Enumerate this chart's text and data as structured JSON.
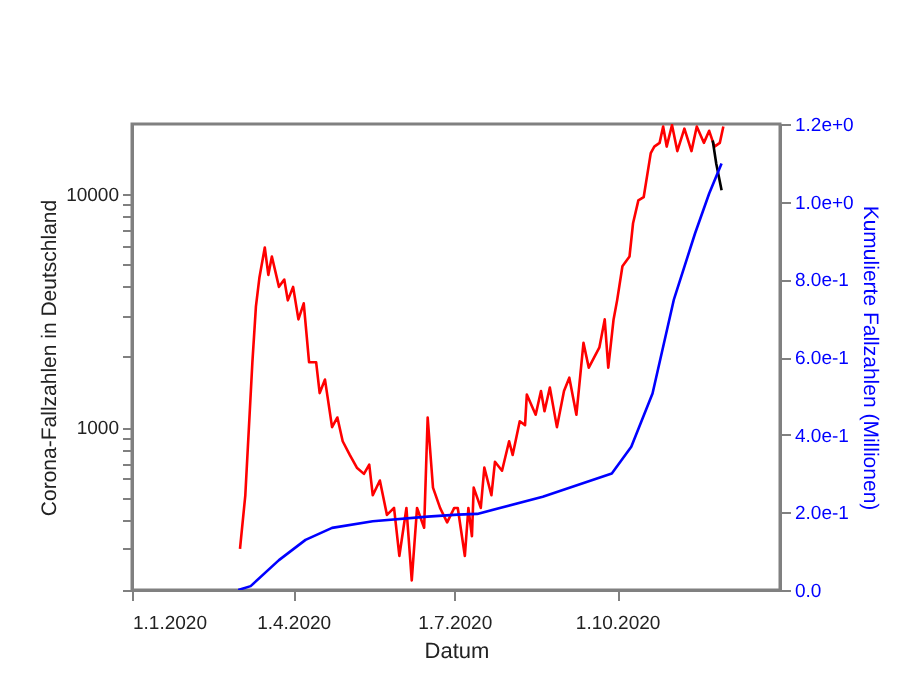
{
  "chart_data": {
    "type": "line",
    "xlabel": "Datum",
    "ylabel": "Corona-Fallzahlen in Deutschland",
    "y2label": "Kumulierte Fallzahlen (Millionen)",
    "log": "y",
    "grid": false,
    "xlim": [
      "2020-01-01",
      "2021-01-01"
    ],
    "xticks": [
      {
        "value": "2020-01-01",
        "label": "1.1.2020"
      },
      {
        "value": "2020-04-01",
        "label": "1.4.2020"
      },
      {
        "value": "2020-07-01",
        "label": "1.7.2020"
      },
      {
        "value": "2020-10-01",
        "label": "1.10.2020"
      }
    ],
    "ylim": [
      200,
      20000
    ],
    "yticks": [
      {
        "value": 200,
        "label": null
      },
      {
        "value": 300,
        "label": null
      },
      {
        "value": 400,
        "label": null
      },
      {
        "value": 500,
        "label": null
      },
      {
        "value": 600,
        "label": null
      },
      {
        "value": 700,
        "label": null
      },
      {
        "value": 800,
        "label": null
      },
      {
        "value": 900,
        "label": null
      },
      1000,
      {
        "value": 2000,
        "label": null
      },
      {
        "value": 3000,
        "label": null
      },
      {
        "value": 4000,
        "label": null
      },
      {
        "value": 5000,
        "label": null
      },
      {
        "value": 6000,
        "label": null
      },
      {
        "value": 7000,
        "label": null
      },
      {
        "value": 8000,
        "label": null
      },
      {
        "value": 9000,
        "label": null
      },
      10000
    ],
    "y2lim": [
      0,
      1.2
    ],
    "y2ticks": [
      {
        "value": 0,
        "label": "0.0"
      },
      {
        "value": 0.2,
        "label": "2.0e-1"
      },
      {
        "value": 0.4,
        "label": "4.0e-1"
      },
      {
        "value": 0.6,
        "label": "6.0e-1"
      },
      {
        "value": 0.8,
        "label": "8.0e-1"
      },
      {
        "value": 1.0,
        "label": "1.0e+0"
      },
      {
        "value": 1.2,
        "label": "1.2e+0"
      }
    ],
    "series": [
      {
        "color": "#ff0000",
        "x": [
          "2020-03-02",
          "2020-03-05",
          "2020-03-09",
          "2020-03-11",
          "2020-03-13",
          "2020-03-16",
          "2020-03-18",
          "2020-03-20",
          "2020-03-24",
          "2020-03-27",
          "2020-03-29",
          "2020-04-01",
          "2020-04-04",
          "2020-04-07",
          "2020-04-10",
          "2020-04-14",
          "2020-04-16",
          "2020-04-19",
          "2020-04-23",
          "2020-04-26",
          "2020-04-29",
          "2020-05-03",
          "2020-05-07",
          "2020-05-11",
          "2020-05-14",
          "2020-05-16",
          "2020-05-20",
          "2020-05-24",
          "2020-05-28",
          "2020-05-31",
          "2020-06-04",
          "2020-06-07",
          "2020-06-10",
          "2020-06-14",
          "2020-06-16",
          "2020-06-19",
          "2020-06-23",
          "2020-06-27",
          "2020-07-01",
          "2020-07-03",
          "2020-07-07",
          "2020-07-09",
          "2020-07-11",
          "2020-07-12",
          "2020-07-16",
          "2020-07-18",
          "2020-07-22",
          "2020-07-24",
          "2020-07-28",
          "2020-08-01",
          "2020-08-03",
          "2020-08-07",
          "2020-08-10",
          "2020-08-11",
          "2020-08-16",
          "2020-08-19",
          "2020-08-21",
          "2020-08-24",
          "2020-08-28",
          "2020-09-01",
          "2020-09-04",
          "2020-09-08",
          "2020-09-12",
          "2020-09-15",
          "2020-09-21",
          "2020-09-24",
          "2020-09-26",
          "2020-09-29",
          "2020-10-01",
          "2020-10-04",
          "2020-10-08",
          "2020-10-10",
          "2020-10-13",
          "2020-10-16",
          "2020-10-20",
          "2020-10-22",
          "2020-10-25",
          "2020-10-27",
          "2020-10-29",
          "2020-11-01",
          "2020-11-04",
          "2020-11-08",
          "2020-11-12",
          "2020-11-15",
          "2020-11-19",
          "2020-11-22",
          "2020-11-25",
          "2020-11-28",
          "2020-11-30"
        ],
        "values": [
          300,
          510,
          1900,
          3300,
          4400,
          5900,
          4500,
          5400,
          4000,
          4300,
          3500,
          4000,
          2900,
          3400,
          1900,
          1900,
          1400,
          1600,
          1000,
          1100,
          870,
          760,
          670,
          630,
          690,
          510,
          590,
          420,
          450,
          280,
          450,
          220,
          450,
          370,
          1100,
          550,
          450,
          390,
          450,
          450,
          280,
          450,
          340,
          550,
          450,
          670,
          510,
          710,
          650,
          870,
          760,
          1060,
          1020,
          1380,
          1130,
          1430,
          1170,
          1480,
          1000,
          1430,
          1630,
          1130,
          2300,
          1800,
          2200,
          2900,
          1800,
          2900,
          3500,
          4900,
          5400,
          7500,
          9400,
          9700,
          15000,
          16000,
          16600,
          19500,
          16000,
          19800,
          15300,
          19100,
          15300,
          19500,
          16600,
          18700,
          16000,
          16600,
          19500
        ]
      },
      {
        "color": "#000000",
        "x": [
          "2020-11-24",
          "2020-11-26",
          "2020-11-29"
        ],
        "values": [
          17000,
          13500,
          10400
        ]
      },
      {
        "color": "#0000ff",
        "axis": "y2",
        "x": [
          "2020-03-01",
          "2020-03-08",
          "2020-03-24",
          "2020-04-08",
          "2020-04-23",
          "2020-05-16",
          "2020-06-16",
          "2020-07-03",
          "2020-07-14",
          "2020-08-20",
          "2020-09-28",
          "2020-10-09",
          "2020-10-21",
          "2020-11-02",
          "2020-11-14",
          "2020-11-22",
          "2020-11-29"
        ],
        "values": [
          0,
          0.01,
          0.077,
          0.129,
          0.16,
          0.177,
          0.189,
          0.194,
          0.196,
          0.24,
          0.3,
          0.369,
          0.506,
          0.747,
          0.918,
          1.021,
          1.098
        ]
      }
    ]
  }
}
